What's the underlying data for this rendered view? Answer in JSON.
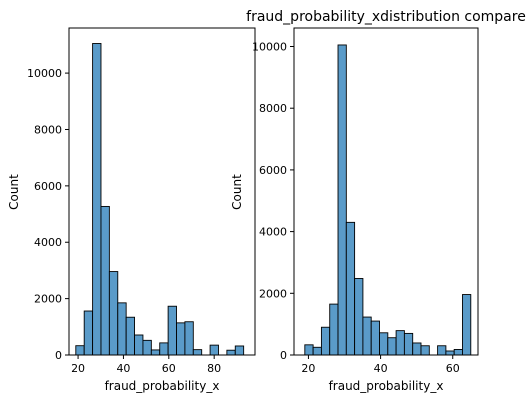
{
  "page": {
    "title": "fraud_probability_xdistribution compare"
  },
  "chart_data": [
    {
      "type": "bar",
      "subtype": "histogram",
      "xlabel": "fraud_probability_x",
      "ylabel": "Count",
      "xlim": [
        16,
        98
      ],
      "ylim": [
        0,
        11600
      ],
      "xticks": [
        20,
        40,
        60,
        80
      ],
      "yticks": [
        0,
        2000,
        4000,
        6000,
        8000,
        10000
      ],
      "bar_color": "#5a9bc9",
      "bins": [
        {
          "x0": 19.0,
          "x1": 22.7,
          "count": 330
        },
        {
          "x0": 22.7,
          "x1": 26.4,
          "count": 1560
        },
        {
          "x0": 26.4,
          "x1": 30.1,
          "count": 11050
        },
        {
          "x0": 30.1,
          "x1": 33.8,
          "count": 5270
        },
        {
          "x0": 33.8,
          "x1": 37.5,
          "count": 2960
        },
        {
          "x0": 37.5,
          "x1": 41.2,
          "count": 1850
        },
        {
          "x0": 41.2,
          "x1": 44.9,
          "count": 1340
        },
        {
          "x0": 44.9,
          "x1": 48.6,
          "count": 710
        },
        {
          "x0": 48.6,
          "x1": 52.3,
          "count": 520
        },
        {
          "x0": 52.3,
          "x1": 56.0,
          "count": 180
        },
        {
          "x0": 56.0,
          "x1": 59.7,
          "count": 430
        },
        {
          "x0": 59.7,
          "x1": 63.4,
          "count": 1730
        },
        {
          "x0": 63.4,
          "x1": 67.1,
          "count": 1140
        },
        {
          "x0": 67.1,
          "x1": 70.8,
          "count": 1180
        },
        {
          "x0": 70.8,
          "x1": 74.5,
          "count": 190
        },
        {
          "x0": 74.5,
          "x1": 78.2,
          "count": 0
        },
        {
          "x0": 78.2,
          "x1": 81.9,
          "count": 350
        },
        {
          "x0": 81.9,
          "x1": 85.6,
          "count": 0
        },
        {
          "x0": 85.6,
          "x1": 89.3,
          "count": 170
        },
        {
          "x0": 89.3,
          "x1": 93.0,
          "count": 320
        }
      ]
    },
    {
      "type": "bar",
      "subtype": "histogram",
      "xlabel": "fraud_probability_x",
      "ylabel": "Count",
      "xlim": [
        16,
        67
      ],
      "ylim": [
        0,
        10600
      ],
      "xticks": [
        20,
        40,
        60
      ],
      "yticks": [
        0,
        2000,
        4000,
        6000,
        8000,
        10000
      ],
      "bar_color": "#5a9bc9",
      "bins": [
        {
          "x0": 19.0,
          "x1": 21.3,
          "count": 330
        },
        {
          "x0": 21.3,
          "x1": 23.6,
          "count": 250
        },
        {
          "x0": 23.6,
          "x1": 25.9,
          "count": 900
        },
        {
          "x0": 25.9,
          "x1": 28.2,
          "count": 1650
        },
        {
          "x0": 28.2,
          "x1": 30.5,
          "count": 10050
        },
        {
          "x0": 30.5,
          "x1": 32.8,
          "count": 4300
        },
        {
          "x0": 32.8,
          "x1": 35.1,
          "count": 2480
        },
        {
          "x0": 35.1,
          "x1": 37.4,
          "count": 1230
        },
        {
          "x0": 37.4,
          "x1": 39.7,
          "count": 1100
        },
        {
          "x0": 39.7,
          "x1": 42.0,
          "count": 720
        },
        {
          "x0": 42.0,
          "x1": 44.3,
          "count": 560
        },
        {
          "x0": 44.3,
          "x1": 46.6,
          "count": 790
        },
        {
          "x0": 46.6,
          "x1": 48.9,
          "count": 700
        },
        {
          "x0": 48.9,
          "x1": 51.2,
          "count": 390
        },
        {
          "x0": 51.2,
          "x1": 53.5,
          "count": 300
        },
        {
          "x0": 53.5,
          "x1": 55.8,
          "count": 0
        },
        {
          "x0": 55.8,
          "x1": 58.1,
          "count": 300
        },
        {
          "x0": 58.1,
          "x1": 60.4,
          "count": 130
        },
        {
          "x0": 60.4,
          "x1": 62.7,
          "count": 180
        },
        {
          "x0": 62.7,
          "x1": 65.0,
          "count": 1960
        }
      ]
    }
  ]
}
